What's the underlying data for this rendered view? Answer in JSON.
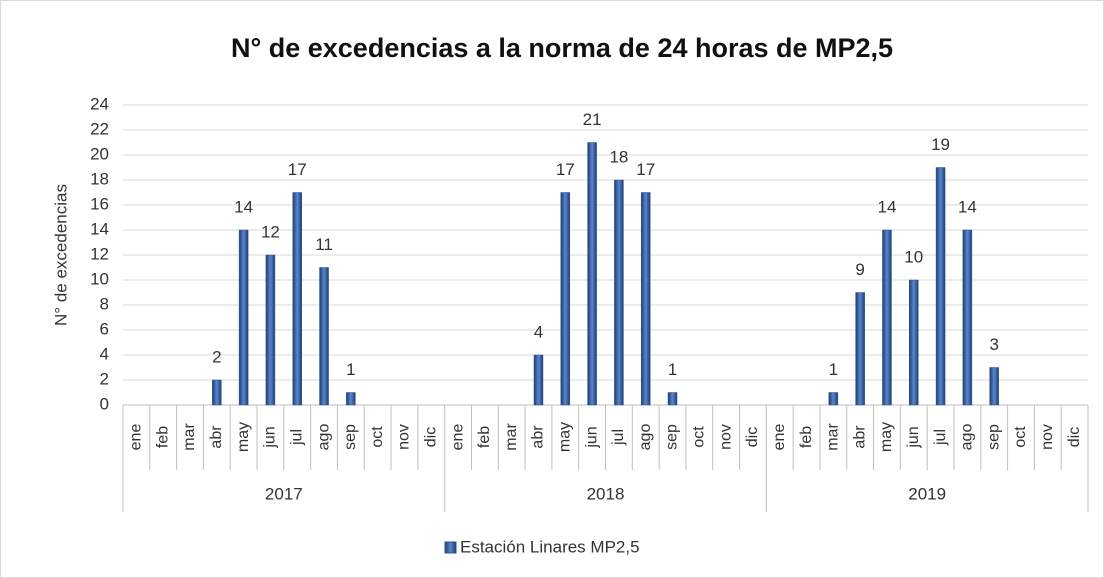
{
  "chart_data": {
    "type": "bar",
    "title": "N° de excedencias a la norma de 24 horas de MP2,5",
    "y_label": "N° de excedencias",
    "categories": [
      "ene",
      "feb",
      "mar",
      "abr",
      "may",
      "jun",
      "jul",
      "ago",
      "sep",
      "oct",
      "nov",
      "dic",
      "ene",
      "feb",
      "mar",
      "abr",
      "may",
      "jun",
      "jul",
      "ago",
      "sep",
      "oct",
      "nov",
      "dic",
      "ene",
      "feb",
      "mar",
      "abr",
      "may",
      "jun",
      "jul",
      "ago",
      "sep",
      "oct",
      "nov",
      "dic"
    ],
    "category_groups": [
      "2017",
      "2018",
      "2019"
    ],
    "series": [
      {
        "name": "Estación Linares MP2,5",
        "color": "#2e5597",
        "values": [
          null,
          null,
          null,
          2,
          14,
          12,
          17,
          11,
          1,
          null,
          null,
          null,
          null,
          null,
          null,
          4,
          17,
          21,
          18,
          17,
          1,
          null,
          null,
          null,
          null,
          null,
          1,
          9,
          14,
          10,
          19,
          14,
          3,
          null,
          null,
          null
        ]
      }
    ],
    "ylim": [
      0,
      24
    ],
    "yticks": [
      0,
      2,
      4,
      6,
      8,
      10,
      12,
      14,
      16,
      18,
      20,
      22,
      24
    ],
    "grid": true,
    "legend": "bottom"
  }
}
